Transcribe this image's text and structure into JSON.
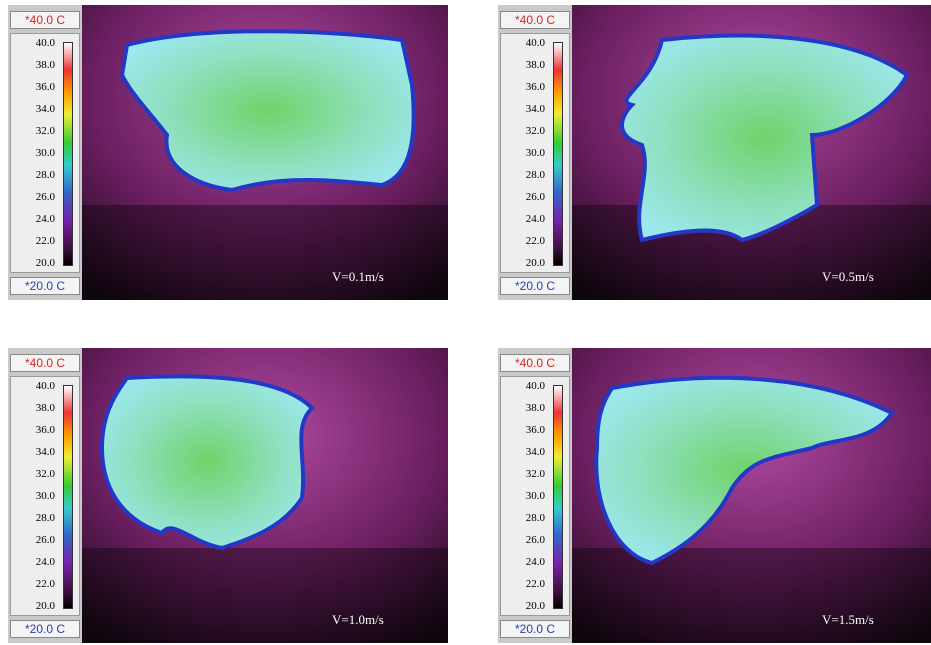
{
  "scale": {
    "max_label": "*40.0 C",
    "min_label": "*20.0 C",
    "ticks": [
      "40.0",
      "38.0",
      "36.0",
      "34.0",
      "32.0",
      "30.0",
      "28.0",
      "26.0",
      "24.0",
      "22.0",
      "20.0"
    ]
  },
  "panels": [
    {
      "caption": "V=0.1m/s"
    },
    {
      "caption": "V=0.5m/s"
    },
    {
      "caption": "V=1.0m/s"
    },
    {
      "caption": "V=1.5m/s"
    }
  ]
}
